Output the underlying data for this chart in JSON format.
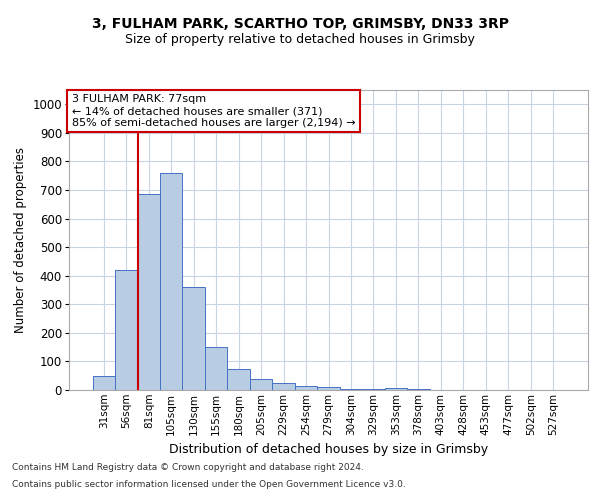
{
  "title1": "3, FULHAM PARK, SCARTHO TOP, GRIMSBY, DN33 3RP",
  "title2": "Size of property relative to detached houses in Grimsby",
  "xlabel": "Distribution of detached houses by size in Grimsby",
  "ylabel": "Number of detached properties",
  "categories": [
    "31sqm",
    "56sqm",
    "81sqm",
    "105sqm",
    "130sqm",
    "155sqm",
    "180sqm",
    "205sqm",
    "229sqm",
    "254sqm",
    "279sqm",
    "304sqm",
    "329sqm",
    "353sqm",
    "378sqm",
    "403sqm",
    "428sqm",
    "453sqm",
    "477sqm",
    "502sqm",
    "527sqm"
  ],
  "values": [
    48,
    420,
    685,
    760,
    360,
    150,
    72,
    37,
    25,
    15,
    10,
    5,
    2,
    8,
    2,
    0,
    0,
    0,
    0,
    0,
    0
  ],
  "bar_color": "#b8cce4",
  "bar_edge_color": "#4472c4",
  "vline_x_index": 2,
  "vline_color": "#cc0000",
  "annotation_text": "3 FULHAM PARK: 77sqm\n← 14% of detached houses are smaller (371)\n85% of semi-detached houses are larger (2,194) →",
  "annotation_box_color": "#ffffff",
  "annotation_box_edge": "#cc0000",
  "ylim": [
    0,
    1050
  ],
  "yticks": [
    0,
    100,
    200,
    300,
    400,
    500,
    600,
    700,
    800,
    900,
    1000
  ],
  "background_color": "#ffffff",
  "grid_color": "#c8d4e3",
  "footer1": "Contains HM Land Registry data © Crown copyright and database right 2024.",
  "footer2": "Contains public sector information licensed under the Open Government Licence v3.0."
}
